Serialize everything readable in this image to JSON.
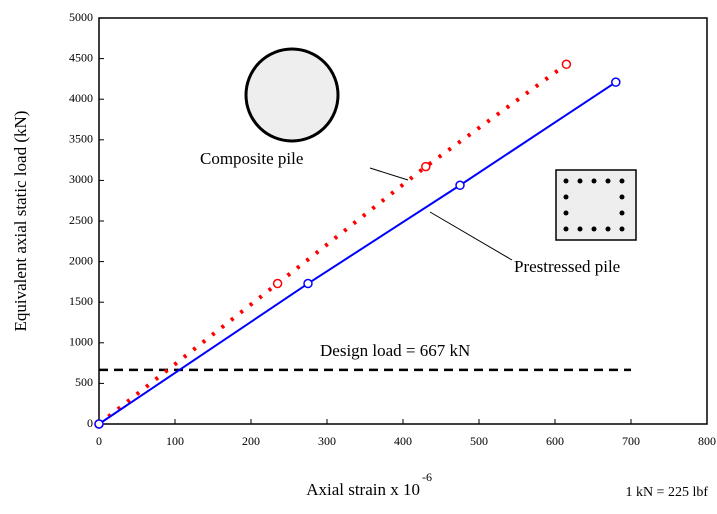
{
  "chart_data": {
    "type": "line",
    "x_label": "Axial strain x 10",
    "x_label_exponent": "-6",
    "y_label": "Equivalent axial static load (kN)",
    "footnote": "1 kN = 225 lbf",
    "series": [
      {
        "name": "Composite pile",
        "color": "#ff0000",
        "dashed": true,
        "x": [
          0,
          235,
          430,
          615
        ],
        "values": [
          0,
          1730,
          3170,
          4430
        ]
      },
      {
        "name": "Prestressed pile",
        "color": "#0000ff",
        "dashed": false,
        "x": [
          0,
          275,
          475,
          680
        ],
        "values": [
          0,
          1730,
          2940,
          4210
        ]
      }
    ],
    "design_load": 667,
    "design_label": "Design load = 667 kN",
    "xlim": [
      0,
      800
    ],
    "xticks": [
      0,
      100,
      200,
      300,
      400,
      500,
      600,
      700,
      800
    ],
    "ylim": [
      0,
      5000
    ],
    "yticks": [
      0,
      500,
      1000,
      1500,
      2000,
      2500,
      3000,
      3500,
      4000,
      4500,
      5000
    ]
  }
}
